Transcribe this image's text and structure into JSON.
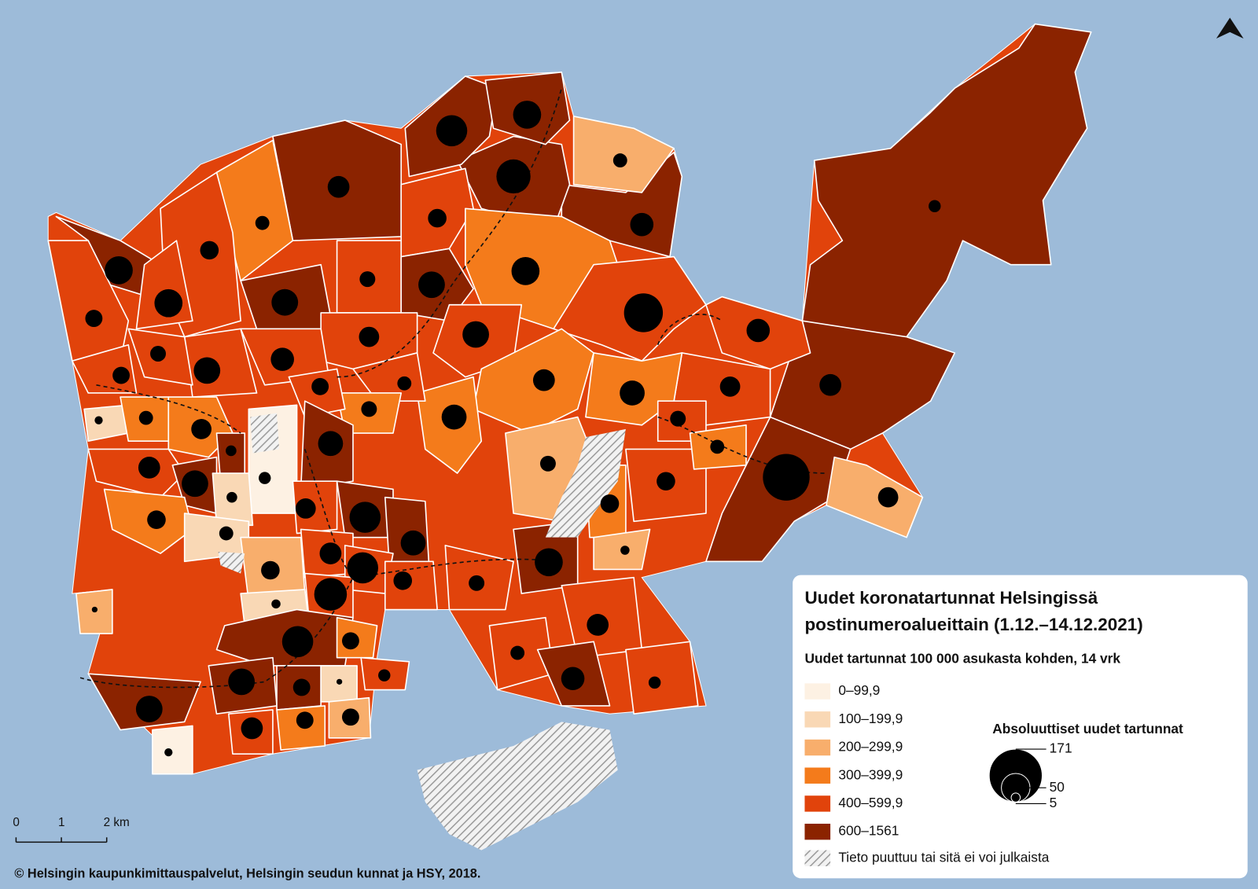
{
  "title_lines": [
    "Uudet koronatartunnat Helsingissä",
    "postinumeroalueittain (1.12.–14.12.2021)"
  ],
  "subtitle": "Uudet tartunnat 100 000 asukasta kohden, 14 vrk",
  "legend": {
    "classes": [
      {
        "label": "0–99,9",
        "color": "#fdf1e3"
      },
      {
        "label": "100–199,9",
        "color": "#f9d8b5"
      },
      {
        "label": "200–299,9",
        "color": "#f8ae6c"
      },
      {
        "label": "300–399,9",
        "color": "#f47b1b"
      },
      {
        "label": "400–599,9",
        "color": "#e1430b"
      },
      {
        "label": "600–1561",
        "color": "#8b2300"
      }
    ],
    "missing": "Tieto puuttuu tai sitä ei voi julkaista"
  },
  "size_legend": {
    "title": "Absoluuttiset uudet tartunnat",
    "values": [
      171,
      50,
      5
    ]
  },
  "scale_bar": {
    "ticks": [
      0,
      1,
      {
        "value": 2,
        "label": "2 km"
      }
    ]
  },
  "credit": "© Helsingin kaupunkimittauspalvelut, Helsingin seudun kunnat ja HSY, 2018.",
  "areas": [
    {
      "class": 5,
      "cases": 9
    },
    {
      "class": 5,
      "cases": 29
    },
    {
      "class": 5,
      "cases": 133
    },
    {
      "class": 2,
      "cases": 25
    },
    {
      "class": 5,
      "cases": 33
    },
    {
      "class": 2,
      "cases": 12
    },
    {
      "class": 5,
      "cases": 71
    },
    {
      "class": 5,
      "cases": 59
    },
    {
      "class": 5,
      "cases": 48
    },
    {
      "class": 5,
      "cases": 29
    },
    {
      "class": 3,
      "cases": 12
    },
    {
      "class": 4,
      "cases": 21
    },
    {
      "class": 4,
      "cases": 21
    },
    {
      "class": 5,
      "cases": 48
    },
    {
      "class": 4,
      "cases": 48
    },
    {
      "class": 4,
      "cases": 18
    },
    {
      "class": 5,
      "cases": 43
    },
    {
      "class": 4,
      "cases": 15
    },
    {
      "class": 5,
      "cases": 43
    },
    {
      "class": 3,
      "cases": 48
    },
    {
      "class": 4,
      "cases": 92
    },
    {
      "class": 4,
      "cases": 25
    },
    {
      "class": 4,
      "cases": 43
    },
    {
      "class": 4,
      "cases": 33
    },
    {
      "class": 4,
      "cases": 43
    },
    {
      "class": 4,
      "cases": 15
    },
    {
      "class": 4,
      "cases": 18
    },
    {
      "class": 4,
      "cases": 33
    },
    {
      "class": 4,
      "cases": 25
    },
    {
      "class": 3,
      "cases": 29
    },
    {
      "class": 3,
      "cases": 38
    },
    {
      "class": 3,
      "cases": 38
    },
    {
      "class": 4,
      "cases": 12
    },
    {
      "class": 3,
      "cases": 15
    },
    {
      "class": 4,
      "cases": 18
    },
    {
      "class": 1,
      "cases": 4
    },
    {
      "class": 3,
      "cases": 12
    },
    {
      "class": 3,
      "cases": 25
    },
    {
      "class": 5,
      "cases": 7
    },
    {
      "class": 0,
      "cases": 9
    },
    {
      "class": 5,
      "cases": 38
    },
    {
      "class": 4,
      "cases": 29
    },
    {
      "class": 5,
      "cases": 43
    },
    {
      "class": 1,
      "cases": 7
    },
    {
      "class": 3,
      "cases": 21
    },
    {
      "class": 4,
      "cases": 25
    },
    {
      "class": 5,
      "cases": 59
    },
    {
      "class": 5,
      "cases": 38
    },
    {
      "class": 4,
      "cases": 29
    },
    {
      "class": 4,
      "cases": 59
    },
    {
      "class": 4,
      "cases": 65
    },
    {
      "class": 1,
      "cases": 12
    },
    {
      "class": 2,
      "cases": 21
    },
    {
      "class": 1,
      "cases": 5
    },
    {
      "class": 4,
      "cases": 21
    },
    {
      "class": 4,
      "cases": 15
    },
    {
      "class": 5,
      "cases": 48
    },
    {
      "class": 2,
      "cases": 15
    },
    {
      "class": 3,
      "cases": 21
    },
    {
      "class": 4,
      "cases": 21
    },
    {
      "class": 4,
      "cases": 15
    },
    {
      "class": 3,
      "cases": 12
    },
    {
      "class": 2,
      "cases": 5
    },
    {
      "class": 5,
      "cases": 59
    },
    {
      "class": 3,
      "cases": 18
    },
    {
      "class": 5,
      "cases": 43
    },
    {
      "class": 5,
      "cases": 18
    },
    {
      "class": 1,
      "cases": 2
    },
    {
      "class": 5,
      "cases": 43
    },
    {
      "class": 4,
      "cases": 9
    },
    {
      "class": 4,
      "cases": 29
    },
    {
      "class": 3,
      "cases": 18
    },
    {
      "class": 2,
      "cases": 18
    },
    {
      "class": 0,
      "cases": 4
    },
    {
      "class": 2,
      "cases": 2
    },
    {
      "class": 4,
      "cases": 29
    },
    {
      "class": 4,
      "cases": 12
    },
    {
      "class": 5,
      "cases": 33
    },
    {
      "class": 4,
      "cases": 9
    }
  ]
}
